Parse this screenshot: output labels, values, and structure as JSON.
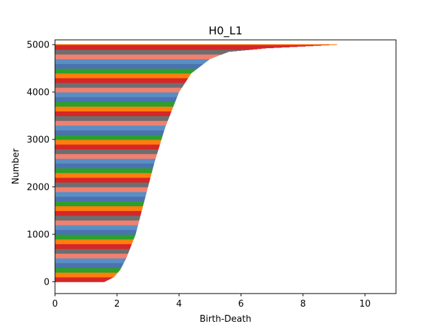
{
  "chart_data": {
    "type": "bar",
    "orientation": "horizontal",
    "title": "H0_L1",
    "xlabel": "Birth-Death",
    "ylabel": "Number",
    "xlim": [
      0,
      11
    ],
    "ylim": [
      -250,
      5100
    ],
    "xticks": [
      "0",
      "2",
      "4",
      "6",
      "8",
      "10"
    ],
    "xtick_values": [
      0,
      2,
      4,
      6,
      8,
      10
    ],
    "yticks": [
      "0",
      "1000",
      "2000",
      "3000",
      "4000",
      "5000"
    ],
    "ytick_values": [
      0,
      1000,
      2000,
      3000,
      4000,
      5000
    ],
    "grid": false,
    "legend": false,
    "count_range": [
      0,
      5000
    ],
    "colors": [
      "#d62728",
      "#ff7f0e",
      "#2ca02c",
      "#4c72b0",
      "#5a8fc4",
      "#f08070",
      "#6e6e6e"
    ],
    "series": [
      {
        "name": "",
        "profile_x": [
          0,
          0.02,
          0.05,
          0.1,
          0.2,
          0.35,
          0.5,
          0.65,
          0.8,
          0.88,
          0.94,
          0.97,
          0.985,
          1.0
        ],
        "profile_y": [
          1.6,
          1.9,
          2.1,
          2.3,
          2.6,
          2.9,
          3.2,
          3.55,
          4.0,
          4.4,
          5.0,
          5.6,
          6.8,
          9.1
        ]
      }
    ]
  }
}
